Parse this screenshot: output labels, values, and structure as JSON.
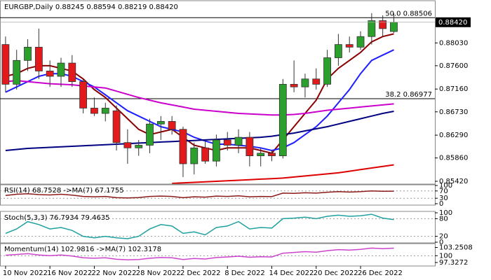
{
  "chart_data": [
    {
      "type": "candlestick",
      "title": "EURGBP,Daily  0.88245 0.88594 0.88219 0.88420",
      "ylim": [
        0.8538,
        0.888
      ],
      "yticks": [
        {
          "value": 0.8803,
          "label": "0.88030"
        },
        {
          "value": 0.876,
          "label": "0.87600"
        },
        {
          "value": 0.8716,
          "label": "0.87160"
        },
        {
          "value": 0.8673,
          "label": "0.86730"
        },
        {
          "value": 0.8629,
          "label": "0.86290"
        },
        {
          "value": 0.8586,
          "label": "0.85860"
        },
        {
          "value": 0.8542,
          "label": "0.85420"
        }
      ],
      "last_price": {
        "value": 0.8842,
        "label": "0.88420"
      },
      "xlim": [
        -0.5,
        38.7
      ],
      "xticks": [
        {
          "value": 0,
          "label": "10 Nov 2022"
        },
        {
          "value": 4,
          "label": "16 Nov 2022"
        },
        {
          "value": 8,
          "label": "22 Nov 2022"
        },
        {
          "value": 12,
          "label": "28 Nov 2022"
        },
        {
          "value": 16,
          "label": "2 Dec 2022"
        },
        {
          "value": 20,
          "label": "8 Dec 2022"
        },
        {
          "value": 24,
          "label": "14 Dec 2022"
        },
        {
          "value": 28,
          "label": "20 Dec 2022"
        },
        {
          "value": 32,
          "label": "26 Dec 2022"
        }
      ],
      "hlines": [
        {
          "value": 0.88506,
          "label": "50.0 0.88506"
        },
        {
          "value": 0.86977,
          "label": "38.2 0.86977"
        }
      ],
      "up_color": "#2ca02c",
      "down_color": "#e31a1c",
      "candles": [
        {
          "open": 0.88,
          "high": 0.8815,
          "low": 0.871,
          "close": 0.8725
        },
        {
          "open": 0.8725,
          "high": 0.879,
          "low": 0.8715,
          "close": 0.877
        },
        {
          "open": 0.877,
          "high": 0.881,
          "low": 0.875,
          "close": 0.8795
        },
        {
          "open": 0.8795,
          "high": 0.883,
          "low": 0.8735,
          "close": 0.875
        },
        {
          "open": 0.875,
          "high": 0.877,
          "low": 0.872,
          "close": 0.874
        },
        {
          "open": 0.874,
          "high": 0.8775,
          "low": 0.872,
          "close": 0.8765
        },
        {
          "open": 0.8765,
          "high": 0.878,
          "low": 0.872,
          "close": 0.873
        },
        {
          "open": 0.873,
          "high": 0.8735,
          "low": 0.867,
          "close": 0.868
        },
        {
          "open": 0.868,
          "high": 0.87,
          "low": 0.8665,
          "close": 0.867
        },
        {
          "open": 0.867,
          "high": 0.869,
          "low": 0.8655,
          "close": 0.868
        },
        {
          "open": 0.8675,
          "high": 0.8685,
          "low": 0.86,
          "close": 0.8615
        },
        {
          "open": 0.8615,
          "high": 0.864,
          "low": 0.8575,
          "close": 0.8605
        },
        {
          "open": 0.8605,
          "high": 0.862,
          "low": 0.859,
          "close": 0.861
        },
        {
          "open": 0.861,
          "high": 0.866,
          "low": 0.8595,
          "close": 0.865
        },
        {
          "open": 0.865,
          "high": 0.8665,
          "low": 0.862,
          "close": 0.8655
        },
        {
          "open": 0.8655,
          "high": 0.8665,
          "low": 0.863,
          "close": 0.864
        },
        {
          "open": 0.864,
          "high": 0.8645,
          "low": 0.855,
          "close": 0.8575
        },
        {
          "open": 0.8575,
          "high": 0.8615,
          "low": 0.8555,
          "close": 0.8605
        },
        {
          "open": 0.8605,
          "high": 0.862,
          "low": 0.8575,
          "close": 0.858
        },
        {
          "open": 0.858,
          "high": 0.863,
          "low": 0.857,
          "close": 0.862
        },
        {
          "open": 0.862,
          "high": 0.8635,
          "low": 0.86,
          "close": 0.861
        },
        {
          "open": 0.861,
          "high": 0.864,
          "low": 0.8595,
          "close": 0.8625
        },
        {
          "open": 0.8625,
          "high": 0.8635,
          "low": 0.857,
          "close": 0.859
        },
        {
          "open": 0.859,
          "high": 0.8605,
          "low": 0.857,
          "close": 0.8595
        },
        {
          "open": 0.8595,
          "high": 0.86,
          "low": 0.858,
          "close": 0.859
        },
        {
          "open": 0.859,
          "high": 0.8735,
          "low": 0.8585,
          "close": 0.8725
        },
        {
          "open": 0.8725,
          "high": 0.877,
          "low": 0.871,
          "close": 0.872
        },
        {
          "open": 0.872,
          "high": 0.8745,
          "low": 0.87,
          "close": 0.8735
        },
        {
          "open": 0.8735,
          "high": 0.8755,
          "low": 0.8715,
          "close": 0.8725
        },
        {
          "open": 0.8725,
          "high": 0.879,
          "low": 0.872,
          "close": 0.8775
        },
        {
          "open": 0.8775,
          "high": 0.882,
          "low": 0.876,
          "close": 0.88
        },
        {
          "open": 0.88,
          "high": 0.8815,
          "low": 0.8785,
          "close": 0.8795
        },
        {
          "open": 0.8795,
          "high": 0.8825,
          "low": 0.879,
          "close": 0.8815
        },
        {
          "open": 0.8815,
          "high": 0.8859,
          "low": 0.88,
          "close": 0.8845
        },
        {
          "open": 0.8845,
          "high": 0.8855,
          "low": 0.8815,
          "close": 0.883
        },
        {
          "open": 0.88245,
          "high": 0.88594,
          "low": 0.88219,
          "close": 0.8842
        }
      ],
      "series": [
        {
          "color": "#8b0000",
          "values": [
            0.874,
            0.8745,
            0.8755,
            0.876,
            0.876,
            0.8755,
            0.875,
            0.8735,
            0.8715,
            0.87,
            0.868,
            0.866,
            0.864,
            0.863,
            0.8635,
            0.864,
            0.8625,
            0.861,
            0.8605,
            0.86,
            0.8605,
            0.8605,
            0.8605,
            0.86,
            0.8595,
            0.862,
            0.8645,
            0.867,
            0.8695,
            0.8735,
            0.8755,
            0.877,
            0.8785,
            0.8805,
            0.8815,
            0.882
          ]
        },
        {
          "color": "#1f1fff",
          "values": [
            0.871,
            0.872,
            0.873,
            0.874,
            0.8745,
            0.8745,
            0.874,
            0.873,
            0.872,
            0.8705,
            0.869,
            0.8675,
            0.8665,
            0.8655,
            0.8645,
            0.864,
            0.8635,
            0.8625,
            0.8618,
            0.8612,
            0.8612,
            0.861,
            0.8608,
            0.8605,
            0.86,
            0.8605,
            0.8615,
            0.863,
            0.8645,
            0.8665,
            0.869,
            0.8715,
            0.8745,
            0.877,
            0.878,
            0.879
          ]
        },
        {
          "color": "#cc00cc",
          "values": [
            0.873,
            0.8732,
            0.873,
            0.8728,
            0.8726,
            0.8725,
            0.8724,
            0.8722,
            0.872,
            0.8718,
            0.8712,
            0.8706,
            0.87,
            0.8695,
            0.869,
            0.8686,
            0.8682,
            0.8678,
            0.8676,
            0.8674,
            0.8672,
            0.867,
            0.8669,
            0.8668,
            0.8667,
            0.8667,
            0.8668,
            0.867,
            0.8673,
            0.8676,
            0.8678,
            0.868,
            0.8682,
            0.8684,
            0.8686,
            0.8688
          ]
        },
        {
          "color": "#000080",
          "values": [
            0.86,
            0.8602,
            0.8604,
            0.8605,
            0.8606,
            0.8607,
            0.8608,
            0.8609,
            0.861,
            0.8611,
            0.8612,
            0.8613,
            0.8614,
            0.8615,
            0.8616,
            0.8617,
            0.8618,
            0.8619,
            0.862,
            0.8621,
            0.8622,
            0.8623,
            0.8624,
            0.8625,
            0.8627,
            0.863,
            0.8633,
            0.8637,
            0.8641,
            0.8645,
            0.865,
            0.8655,
            0.866,
            0.8665,
            0.867,
            0.8674
          ]
        },
        {
          "color": "#dd0000",
          "values": [
            null,
            null,
            null,
            null,
            null,
            null,
            null,
            null,
            null,
            null,
            null,
            null,
            null,
            null,
            null,
            0.8538,
            0.8539,
            0.854,
            0.8541,
            0.8542,
            0.8543,
            0.8544,
            0.8545,
            0.8546,
            0.8547,
            0.8548,
            0.855,
            0.8552,
            0.8554,
            0.8556,
            0.8558,
            0.8561,
            0.8564,
            0.8567,
            0.857,
            0.8573
          ]
        }
      ]
    },
    {
      "type": "line",
      "title": "RSI(14) 68.7528 ->MA(7) 67.1755",
      "ylim": [
        0,
        100
      ],
      "yticks": [
        100,
        70,
        30,
        0
      ],
      "grid": true,
      "series": [
        {
          "color": "#8b1a1a",
          "values": [
            45,
            52,
            55,
            50,
            48,
            52,
            47,
            40,
            38,
            40,
            33,
            32,
            34,
            40,
            42,
            40,
            33,
            38,
            36,
            42,
            40,
            43,
            38,
            40,
            39,
            58,
            57,
            60,
            58,
            63,
            66,
            64,
            66,
            70,
            68,
            68.7528
          ]
        }
      ]
    },
    {
      "type": "line",
      "title": "Stoch(5,3,3) 76.7934 79.4635",
      "ylim": [
        0,
        100
      ],
      "yticks": [
        100,
        80,
        20,
        0
      ],
      "grid": true,
      "series": [
        {
          "color": "#20a0a0",
          "values": [
            30,
            45,
            70,
            60,
            45,
            50,
            40,
            20,
            15,
            20,
            15,
            12,
            20,
            45,
            60,
            55,
            30,
            35,
            25,
            50,
            55,
            70,
            45,
            50,
            48,
            80,
            82,
            85,
            80,
            88,
            92,
            88,
            90,
            95,
            82,
            76.7934
          ]
        }
      ]
    },
    {
      "type": "line",
      "title": "Momentum(14) 102.9816 ->MA(7) 102.3178",
      "ylim": [
        96.5,
        104.5
      ],
      "yticks": [
        103.2508,
        100,
        97.3272
      ],
      "grid": true,
      "series": [
        {
          "color": "#cc44cc",
          "values": [
            100.2,
            100.5,
            100.8,
            100.3,
            100,
            100.3,
            99.9,
            99.2,
            99,
            99.2,
            98.6,
            98.4,
            98.5,
            99,
            99.3,
            99.2,
            98.5,
            98.9,
            98.7,
            99.3,
            99.5,
            99.8,
            99.4,
            99.6,
            99.5,
            101,
            101.3,
            101.6,
            101.4,
            102,
            102.4,
            102.2,
            102.5,
            103,
            102.8,
            102.9816
          ]
        }
      ]
    }
  ]
}
